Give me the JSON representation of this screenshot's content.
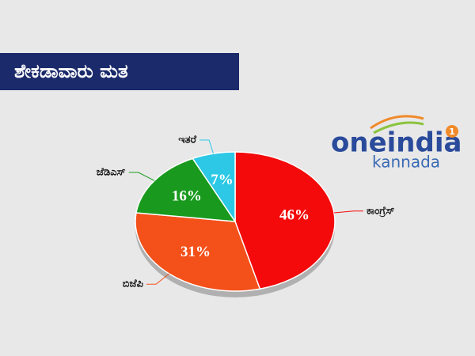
{
  "chart_data": {
    "type": "pie",
    "title": "ಶೇಕಡಾವಾರು ಮತ",
    "categories": [
      "ಕಾಂಗ್ರೆಸ್",
      "ಬಿಜೆಪಿ",
      "ಜೆಡಿಎಸ್",
      "ಇತರೆ"
    ],
    "values": [
      46,
      31,
      16,
      7
    ],
    "value_labels": [
      "46%",
      "31%",
      "16%",
      "7%"
    ],
    "colors": [
      "#f40a0a",
      "#f4501a",
      "#199a1e",
      "#2cc8e6"
    ]
  },
  "logo": {
    "name": "oneindia",
    "sub": "kannada",
    "badge": "1"
  }
}
